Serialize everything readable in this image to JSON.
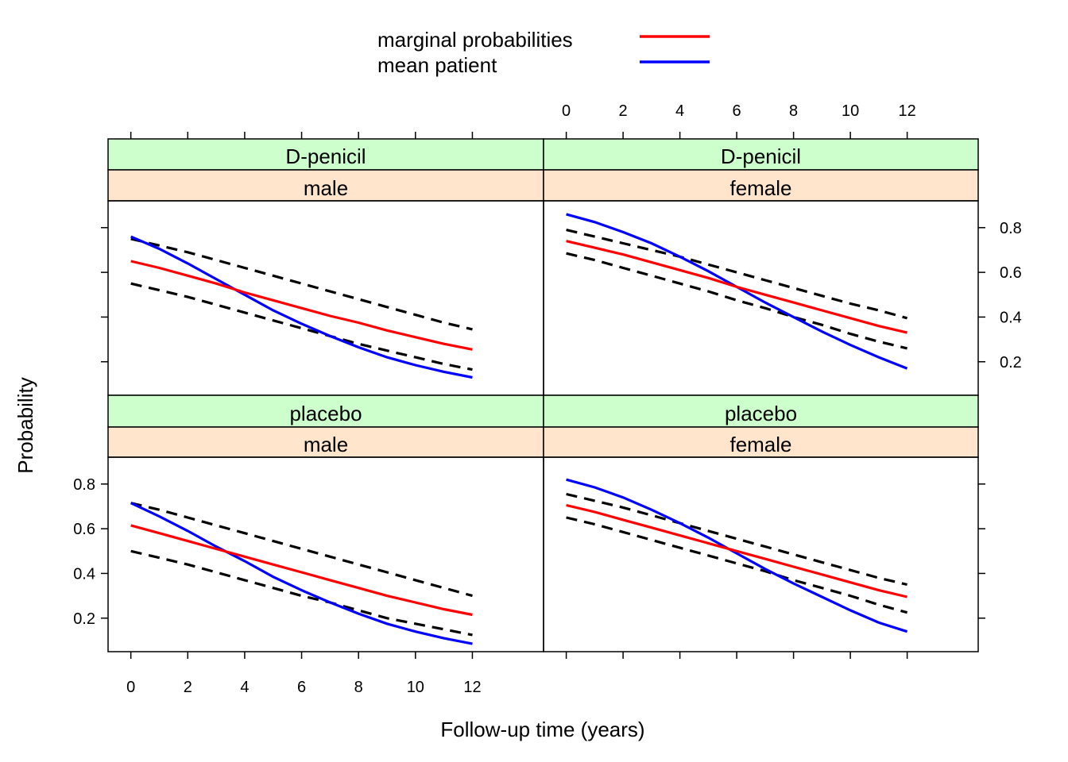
{
  "legend": {
    "items": [
      {
        "label": "marginal probabilities",
        "color": "#ff0000"
      },
      {
        "label": "mean patient",
        "color": "#0000ff"
      }
    ]
  },
  "axes": {
    "xlabel": "Follow-up time (years)",
    "ylabel": "Probability",
    "x_ticks": [
      0,
      2,
      4,
      6,
      8,
      10,
      12
    ],
    "x_tick_labels": [
      "0",
      "2",
      "4",
      "6",
      "8",
      "10",
      "12"
    ],
    "y_ticks": [
      0.2,
      0.4,
      0.6,
      0.8
    ],
    "y_tick_labels": [
      "0.2",
      "0.4",
      "0.6",
      "0.8"
    ],
    "xlim": [
      -0.8,
      14.5
    ],
    "ylim": [
      0.05,
      0.92
    ]
  },
  "colors": {
    "strip_outer": "#ccffcc",
    "strip_inner": "#ffe5cc",
    "marginal": "#ff0000",
    "mean_patient": "#0000ff",
    "ci": "#000000"
  },
  "chart_data": {
    "type": "line",
    "layout": "2x2 trellis",
    "legend_position": "top",
    "grid": false,
    "x": [
      0,
      1,
      2,
      3,
      4,
      5,
      6,
      7,
      8,
      9,
      10,
      11,
      12
    ],
    "panels": [
      {
        "strip_outer": "D-penicil",
        "strip_inner": "male",
        "series": [
          {
            "name": "marginal probabilities",
            "values": [
              0.65,
              0.62,
              0.585,
              0.55,
              0.51,
              0.475,
              0.44,
              0.405,
              0.375,
              0.34,
              0.31,
              0.28,
              0.255
            ]
          },
          {
            "name": "mean patient",
            "values": [
              0.76,
              0.705,
              0.64,
              0.57,
              0.5,
              0.43,
              0.37,
              0.315,
              0.265,
              0.22,
              0.185,
              0.155,
              0.13
            ]
          },
          {
            "name": "lower",
            "values": [
              0.55,
              0.52,
              0.49,
              0.455,
              0.42,
              0.385,
              0.35,
              0.315,
              0.28,
              0.25,
              0.22,
              0.19,
              0.165
            ]
          },
          {
            "name": "upper",
            "values": [
              0.75,
              0.72,
              0.69,
              0.655,
              0.62,
              0.585,
              0.55,
              0.515,
              0.48,
              0.445,
              0.41,
              0.375,
              0.345
            ]
          }
        ]
      },
      {
        "strip_outer": "D-penicil",
        "strip_inner": "female",
        "series": [
          {
            "name": "marginal probabilities",
            "values": [
              0.74,
              0.71,
              0.68,
              0.645,
              0.61,
              0.575,
              0.535,
              0.5,
              0.465,
              0.43,
              0.395,
              0.36,
              0.33
            ]
          },
          {
            "name": "mean patient",
            "values": [
              0.86,
              0.825,
              0.78,
              0.73,
              0.67,
              0.605,
              0.535,
              0.465,
              0.4,
              0.335,
              0.275,
              0.22,
              0.17
            ]
          },
          {
            "name": "lower",
            "values": [
              0.685,
              0.655,
              0.62,
              0.585,
              0.55,
              0.515,
              0.475,
              0.44,
              0.4,
              0.365,
              0.325,
              0.29,
              0.26
            ]
          },
          {
            "name": "upper",
            "values": [
              0.79,
              0.76,
              0.73,
              0.7,
              0.67,
              0.635,
              0.6,
              0.565,
              0.53,
              0.495,
              0.46,
              0.43,
              0.395
            ]
          }
        ]
      },
      {
        "strip_outer": "placebo",
        "strip_inner": "male",
        "series": [
          {
            "name": "marginal probabilities",
            "values": [
              0.615,
              0.58,
              0.545,
              0.51,
              0.475,
              0.44,
              0.405,
              0.37,
              0.335,
              0.3,
              0.27,
              0.24,
              0.215
            ]
          },
          {
            "name": "mean patient",
            "values": [
              0.715,
              0.655,
              0.59,
              0.52,
              0.455,
              0.385,
              0.325,
              0.27,
              0.22,
              0.175,
              0.14,
              0.11,
              0.085
            ]
          },
          {
            "name": "lower",
            "values": [
              0.5,
              0.47,
              0.44,
              0.405,
              0.37,
              0.335,
              0.3,
              0.27,
              0.235,
              0.2,
              0.175,
              0.15,
              0.125
            ]
          },
          {
            "name": "upper",
            "values": [
              0.715,
              0.685,
              0.65,
              0.615,
              0.58,
              0.545,
              0.51,
              0.475,
              0.44,
              0.405,
              0.37,
              0.335,
              0.3
            ]
          }
        ]
      },
      {
        "strip_outer": "placebo",
        "strip_inner": "female",
        "series": [
          {
            "name": "marginal probabilities",
            "values": [
              0.705,
              0.675,
              0.64,
              0.605,
              0.57,
              0.535,
              0.5,
              0.465,
              0.43,
              0.395,
              0.36,
              0.325,
              0.295
            ]
          },
          {
            "name": "mean patient",
            "values": [
              0.82,
              0.785,
              0.74,
              0.685,
              0.625,
              0.56,
              0.49,
              0.42,
              0.355,
              0.295,
              0.235,
              0.18,
              0.14
            ]
          },
          {
            "name": "lower",
            "values": [
              0.65,
              0.62,
              0.585,
              0.55,
              0.515,
              0.48,
              0.445,
              0.41,
              0.37,
              0.335,
              0.3,
              0.26,
              0.225
            ]
          },
          {
            "name": "upper",
            "values": [
              0.755,
              0.725,
              0.695,
              0.66,
              0.625,
              0.59,
              0.555,
              0.52,
              0.485,
              0.45,
              0.415,
              0.38,
              0.35
            ]
          }
        ]
      }
    ]
  }
}
